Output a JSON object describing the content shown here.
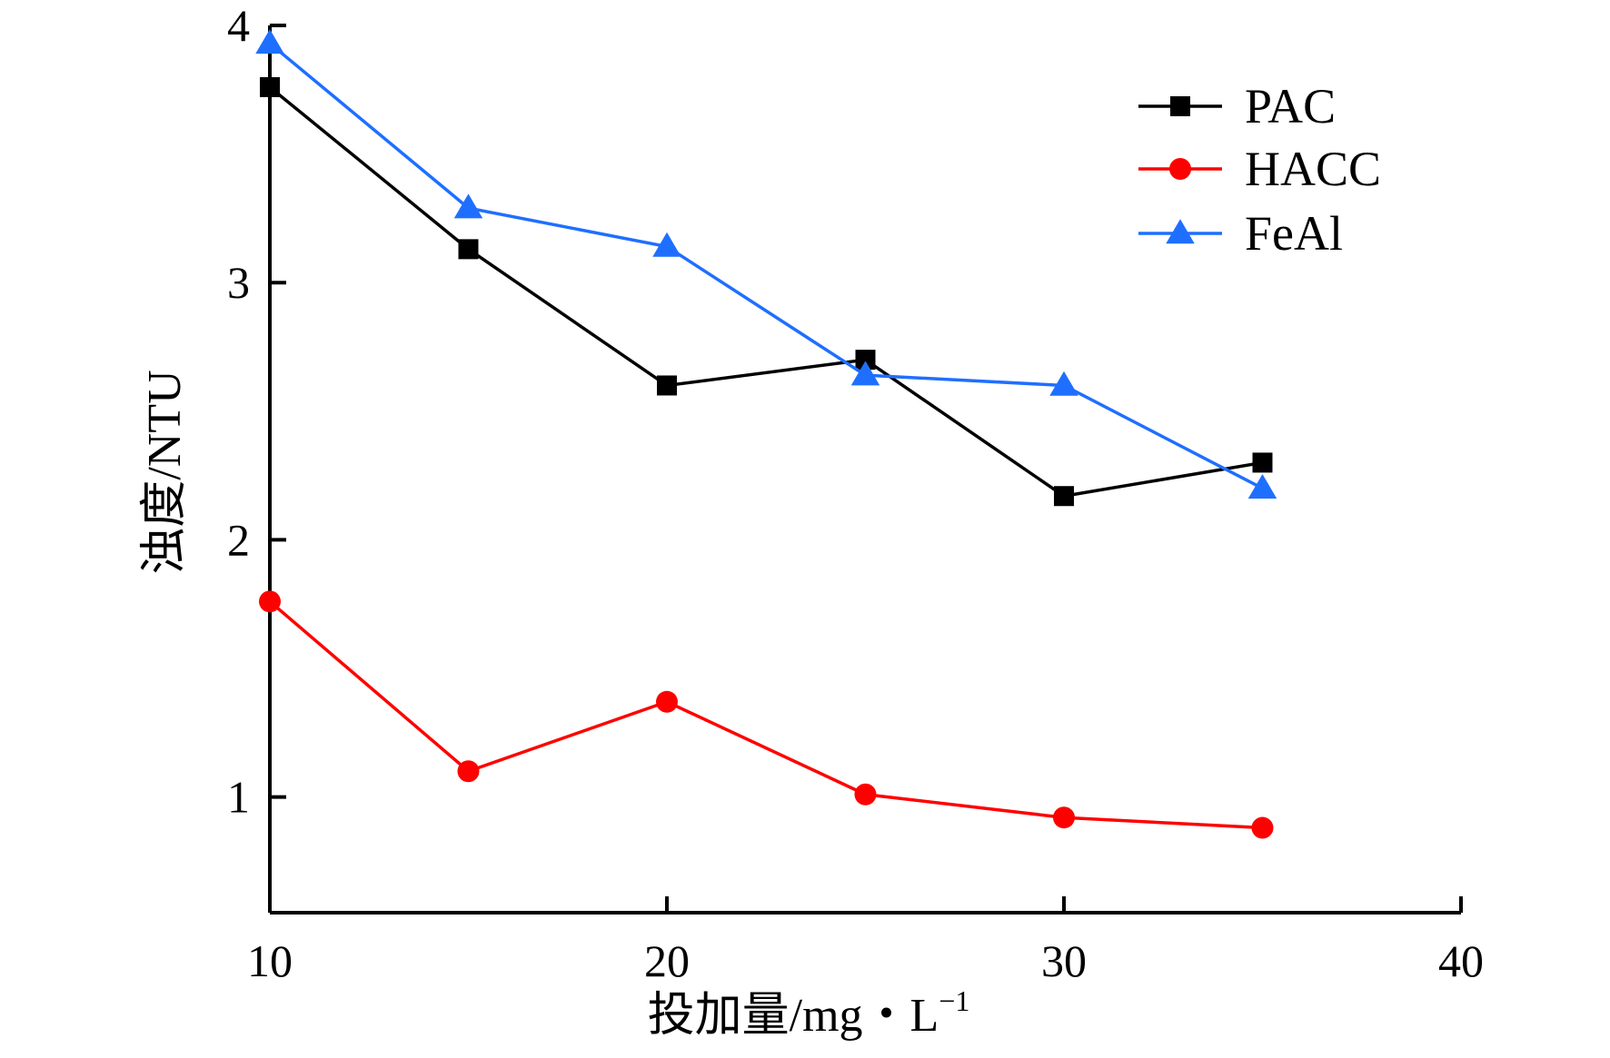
{
  "chart_data": {
    "type": "line",
    "xlabel": "投加量/mg・L",
    "xlabel_sup": "−1",
    "ylabel": "浊度/NTU",
    "xlim": [
      10,
      40
    ],
    "ylim": [
      0.55,
      4.0
    ],
    "xticks": [
      10,
      20,
      30,
      40
    ],
    "yticks": [
      1,
      2,
      3,
      4
    ],
    "grid": false,
    "legend_position": "top-right",
    "series": [
      {
        "name": "PAC",
        "color": "#000000",
        "marker": "square",
        "x": [
          10,
          15,
          20,
          25,
          30,
          35
        ],
        "y": [
          3.76,
          3.13,
          2.6,
          2.7,
          2.17,
          2.3
        ]
      },
      {
        "name": "HACC",
        "color": "#ff0000",
        "marker": "circle",
        "x": [
          10,
          15,
          20,
          25,
          30,
          35
        ],
        "y": [
          1.76,
          1.1,
          1.37,
          1.01,
          0.92,
          0.88
        ]
      },
      {
        "name": "FeAl",
        "color": "#1f6fff",
        "marker": "triangle",
        "x": [
          10,
          15,
          20,
          25,
          30,
          35
        ],
        "y": [
          3.93,
          3.29,
          3.14,
          2.64,
          2.6,
          2.2
        ]
      }
    ]
  }
}
